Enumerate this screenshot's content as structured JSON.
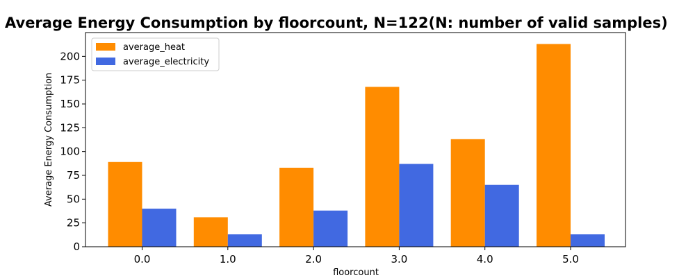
{
  "chart_data": {
    "type": "bar",
    "title": "Average Energy Consumption by floorcount, N=122(N: number of valid samples)",
    "xlabel": "floorcount",
    "ylabel": "Average Energy Consumption",
    "categories": [
      "0.0",
      "1.0",
      "2.0",
      "3.0",
      "4.0",
      "5.0"
    ],
    "series": [
      {
        "name": "average_heat",
        "color": "#ff8c00",
        "values": [
          89,
          31,
          83,
          168,
          113,
          213
        ]
      },
      {
        "name": "average_electricity",
        "color": "#4169e1",
        "values": [
          40,
          13,
          38,
          87,
          65,
          13
        ]
      }
    ],
    "ylim": [
      0,
      225
    ],
    "yticks": [
      0,
      25,
      50,
      75,
      100,
      125,
      150,
      175,
      200
    ],
    "grid": false,
    "legend_position": "top-left"
  }
}
